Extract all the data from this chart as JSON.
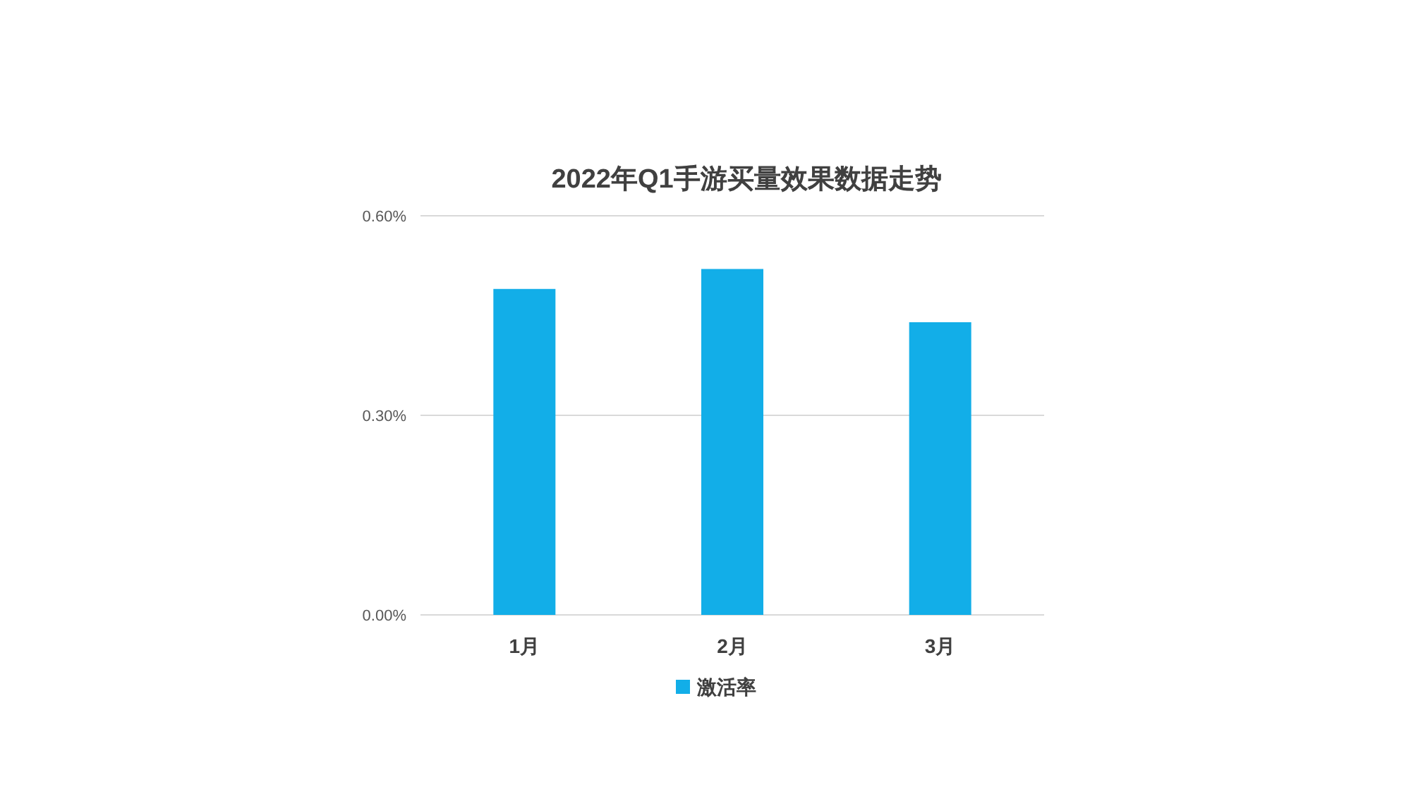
{
  "chart_data": {
    "type": "bar",
    "title": "2022年Q1手游买量效果数据走势",
    "categories": [
      "1月",
      "2月",
      "3月"
    ],
    "series": [
      {
        "name": "激活率",
        "color": "#12aee8",
        "values": [
          0.49,
          0.52,
          0.44
        ]
      }
    ],
    "ylim": [
      0,
      0.6
    ],
    "yticks": [
      {
        "value": 0,
        "label": "0.00%"
      },
      {
        "value": 0.3,
        "label": "0.30%"
      },
      {
        "value": 0.6,
        "label": "0.60%"
      }
    ],
    "grid": "y",
    "legend": "bottom"
  }
}
